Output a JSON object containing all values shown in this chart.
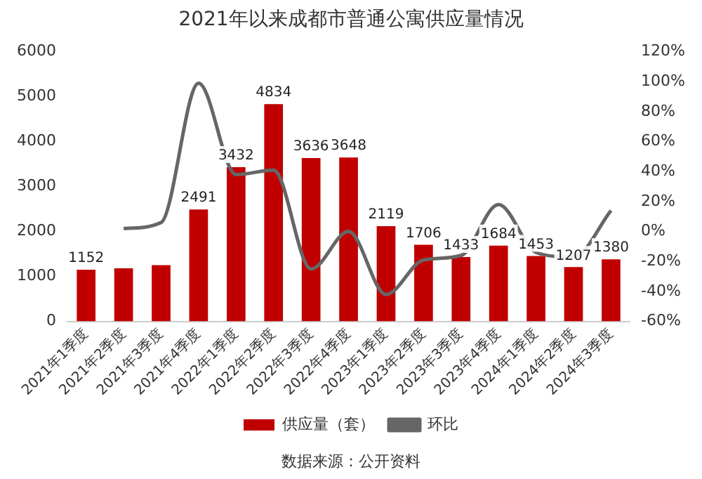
{
  "chart_data": {
    "type": "bar",
    "title": "2021年以来成都市普通公寓供应量情况",
    "categories": [
      "2021年1季度",
      "2021年2季度",
      "2021年3季度",
      "2021年4季度",
      "2022年1季度",
      "2022年2季度",
      "2022年3季度",
      "2022年4季度",
      "2023年1季度",
      "2023年2季度",
      "2023年3季度",
      "2023年4季度",
      "2024年1季度",
      "2024年2季度",
      "2024年3季度"
    ],
    "series": [
      {
        "name": "供应量（套）",
        "color": "#c00000",
        "values": [
          1152,
          1180,
          1250,
          2491,
          3432,
          4834,
          3636,
          3648,
          2119,
          1706,
          1433,
          1684,
          1453,
          1207,
          1380
        ],
        "value_labels": [
          "1152",
          null,
          null,
          "2491",
          "3432",
          "4834",
          "3636",
          "3648",
          "2119",
          "1706",
          "1433",
          "1684",
          "1453",
          "1207",
          "1380"
        ]
      },
      {
        "name": "环比",
        "type": "line",
        "axis": "y2",
        "color": "#666666",
        "values": [
          null,
          2,
          6,
          99,
          38,
          41,
          -25,
          0,
          -42,
          -19,
          -16,
          18,
          -14,
          -17,
          14
        ]
      }
    ],
    "ylim": [
      0,
      6000
    ],
    "yticks": [
      0,
      1000,
      2000,
      3000,
      4000,
      5000,
      6000
    ],
    "y2lim": [
      -60,
      120
    ],
    "y2ticks": [
      {
        "value": -60,
        "label": "-60%"
      },
      {
        "value": -40,
        "label": "-40%"
      },
      {
        "value": -20,
        "label": "-20%"
      },
      {
        "value": 0,
        "label": "0%"
      },
      {
        "value": 20,
        "label": "20%"
      },
      {
        "value": 40,
        "label": "40%"
      },
      {
        "value": 60,
        "label": "60%"
      },
      {
        "value": 80,
        "label": "80%"
      },
      {
        "value": 100,
        "label": "100%"
      },
      {
        "value": 120,
        "label": "120%"
      }
    ],
    "grid": false,
    "legend": "bottom",
    "marker": "none",
    "annotations": [
      "数据来源：公开资料"
    ]
  }
}
